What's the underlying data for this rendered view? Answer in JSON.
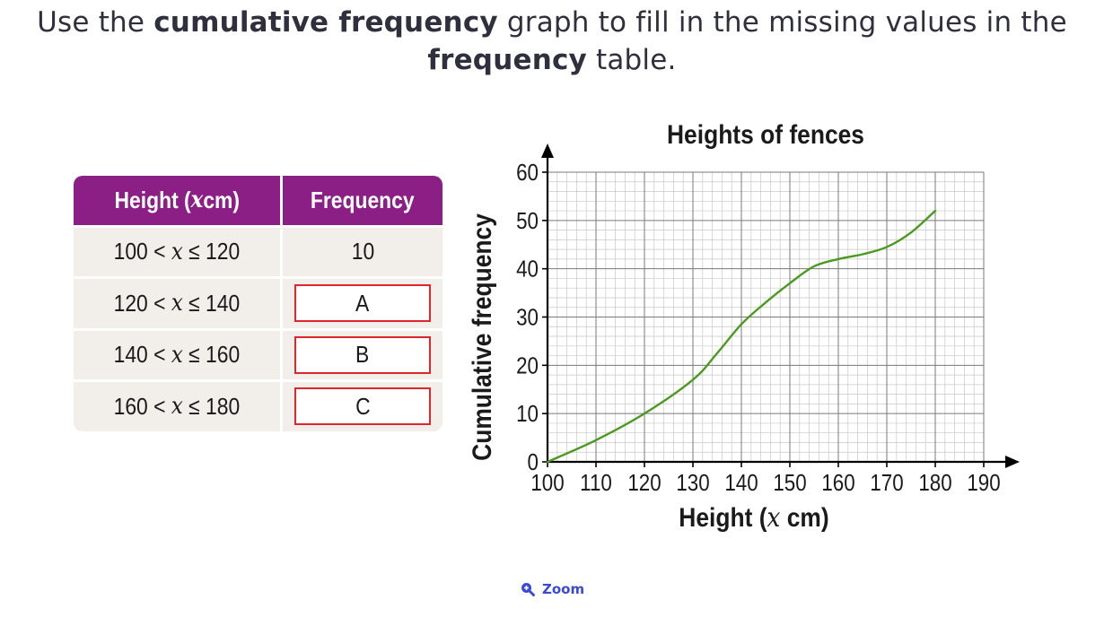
{
  "question": {
    "part1": "Use the ",
    "bold1": "cumulative frequency",
    "part2": " graph to fill in the missing values in the ",
    "bold2": "frequency",
    "part3": " table."
  },
  "table": {
    "header_height_prefix": "Height (",
    "header_height_var": "x",
    "header_height_suffix": " cm)",
    "header_frequency": "Frequency",
    "rows": [
      {
        "lower": "100",
        "upper": "120",
        "var": "x",
        "frequency": "10"
      },
      {
        "lower": "120",
        "upper": "140",
        "var": "x",
        "frequency": "A"
      },
      {
        "lower": "140",
        "upper": "160",
        "var": "x",
        "frequency": "B"
      },
      {
        "lower": "160",
        "upper": "180",
        "var": "x",
        "frequency": "C"
      }
    ]
  },
  "chart_data": {
    "type": "line",
    "title": "Heights of fences",
    "xlabel_prefix": "Height (",
    "xlabel_var": "x",
    "xlabel_suffix": " cm)",
    "ylabel": "Cumulative frequency",
    "xlim": [
      100,
      190
    ],
    "ylim": [
      0,
      60
    ],
    "x_ticks": [
      "100",
      "110",
      "120",
      "130",
      "140",
      "150",
      "160",
      "170",
      "180",
      "190"
    ],
    "y_ticks": [
      "0",
      "10",
      "20",
      "30",
      "40",
      "50",
      "60"
    ],
    "grid": true,
    "line_color": "#4a9a1e",
    "series": [
      {
        "x": [
          100,
          110,
          120,
          130,
          135,
          140,
          145,
          150,
          155,
          160,
          165,
          170,
          175,
          180
        ],
        "y": [
          0,
          4.5,
          10,
          17,
          22.5,
          28.5,
          33,
          37,
          40.5,
          42,
          43,
          44.5,
          47.5,
          52
        ]
      }
    ]
  },
  "zoom": {
    "label": "Zoom",
    "icon": "zoom-in-icon"
  }
}
